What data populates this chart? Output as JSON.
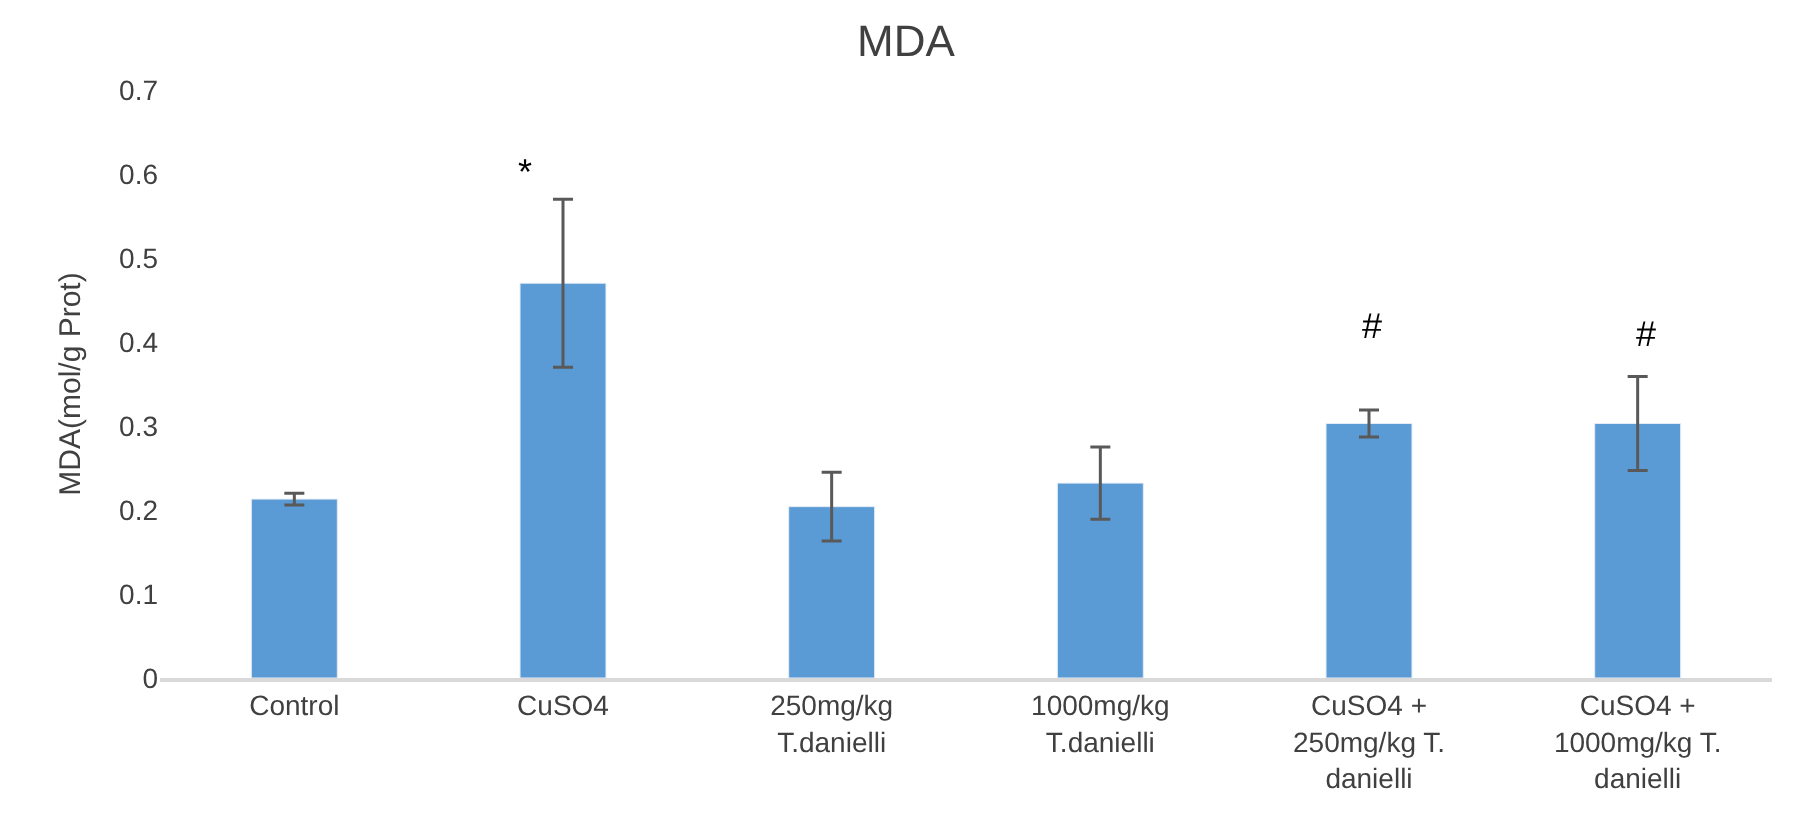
{
  "chart_data": {
    "type": "bar",
    "title": "MDA",
    "ylabel": "MDA(mol/g Prot)",
    "categories": [
      "Control",
      "CuSO4",
      "250mg/kg\nT.danielli",
      "1000mg/kg\nT.danielli",
      "CuSO4 +\n250mg/kg T.\ndanielli",
      "CuSO4 +\n1000mg/kg T.\ndanielli"
    ],
    "values": [
      0.213,
      0.47,
      0.204,
      0.232,
      0.303,
      0.303
    ],
    "errors": [
      0.007,
      0.1,
      0.041,
      0.043,
      0.016,
      0.056
    ],
    "color": "#5b9bd5",
    "ylim": [
      0,
      0.7
    ],
    "yticks": [
      0,
      0.1,
      0.2,
      0.3,
      0.4,
      0.5,
      0.6,
      0.7
    ],
    "annotations": [
      "*",
      "#",
      "#"
    ]
  }
}
